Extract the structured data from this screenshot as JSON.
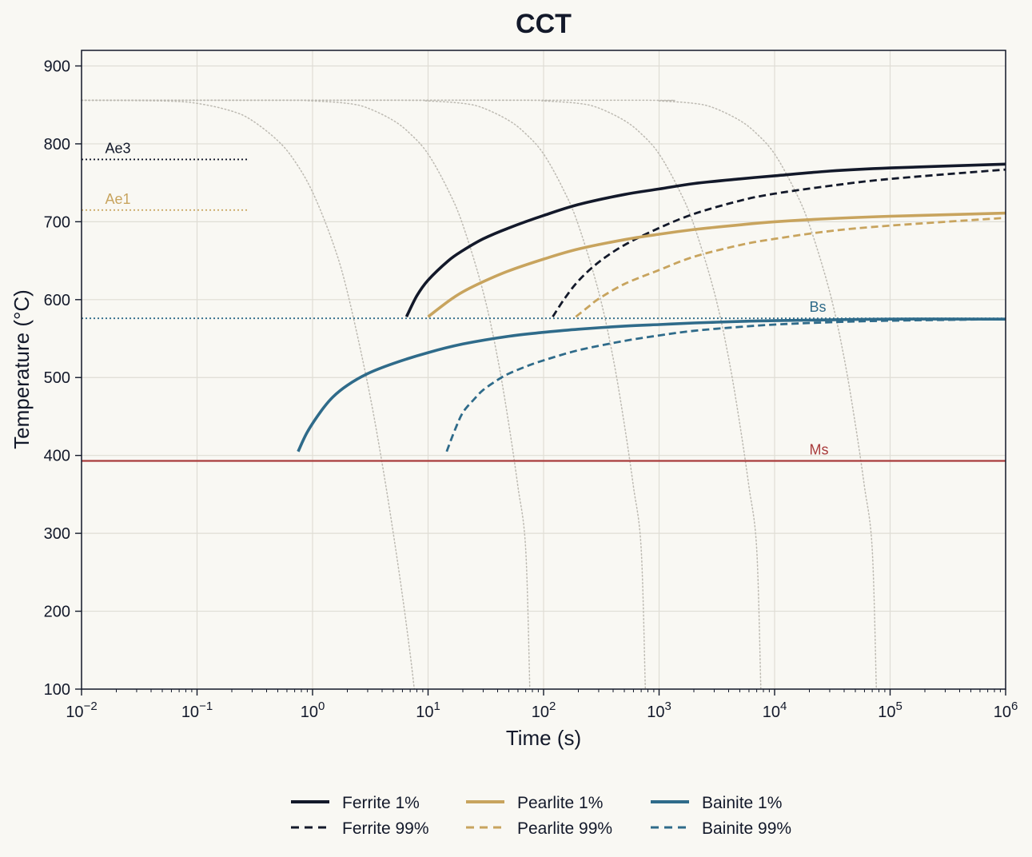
{
  "chart_data": {
    "type": "line",
    "title": "CCT",
    "xlabel": "Time (s)",
    "ylabel": "Temperature (°C)",
    "x_scale": "log",
    "xlim": [
      0.01,
      1000000
    ],
    "ylim": [
      100,
      920
    ],
    "grid": true,
    "x_ticks": [
      {
        "value": 0.01,
        "base": "10",
        "exp": "−2"
      },
      {
        "value": 0.1,
        "base": "10",
        "exp": "−1"
      },
      {
        "value": 1,
        "base": "10",
        "exp": "0"
      },
      {
        "value": 10,
        "base": "10",
        "exp": "1"
      },
      {
        "value": 100,
        "base": "10",
        "exp": "2"
      },
      {
        "value": 1000,
        "base": "10",
        "exp": "3"
      },
      {
        "value": 10000,
        "base": "10",
        "exp": "4"
      },
      {
        "value": 100000,
        "base": "10",
        "exp": "5"
      },
      {
        "value": 1000000,
        "base": "10",
        "exp": "6"
      }
    ],
    "y_ticks": [
      100,
      200,
      300,
      400,
      500,
      600,
      700,
      800,
      900
    ],
    "colors": {
      "ferrite": "#13192a",
      "pearlite": "#c8a45e",
      "bainite": "#2f6b8a",
      "ms": "#a93c3c",
      "cooling": "#bdbab2",
      "grid": "#dfddd5"
    },
    "reference_lines": [
      {
        "label": "Ae3",
        "y": 780,
        "x_end": 0.28,
        "style": "dotted",
        "color": "#13192a",
        "label_x": 0.016
      },
      {
        "label": "Ae1",
        "y": 715,
        "x_end": 0.28,
        "style": "dotted",
        "color": "#c8a45e",
        "label_x": 0.016
      },
      {
        "label": "Bs",
        "y": 576,
        "x_end": 1000000,
        "style": "dotted",
        "color": "#2f6b8a",
        "label_x": 20000
      },
      {
        "label": "Ms",
        "y": 393,
        "x_end": 1000000,
        "style": "solid",
        "color": "#a93c3c",
        "label_x": 20000
      }
    ],
    "cooling_curves": [
      {
        "x": [
          0.01,
          0.05,
          0.1,
          0.2,
          0.3,
          0.5,
          0.7,
          1,
          1.5,
          2,
          3,
          4,
          5,
          6,
          7,
          7.6
        ],
        "y": [
          856,
          855,
          852,
          842,
          830,
          804,
          778,
          738,
          673,
          610,
          492,
          390,
          300,
          220,
          145,
          100
        ]
      },
      {
        "x": [
          0.01,
          0.5,
          1,
          2,
          3,
          5,
          7,
          10,
          15,
          20,
          30,
          40,
          50,
          60,
          70,
          76
        ],
        "y": [
          856,
          856,
          855,
          852,
          846,
          830,
          813,
          787,
          740,
          696,
          610,
          525,
          440,
          360,
          280,
          100
        ]
      },
      {
        "x": [
          0.01,
          5,
          10,
          20,
          30,
          50,
          70,
          100,
          150,
          200,
          300,
          400,
          500,
          600,
          700,
          760
        ],
        "y": [
          856,
          856,
          855,
          852,
          846,
          830,
          813,
          787,
          740,
          696,
          610,
          525,
          440,
          360,
          280,
          100
        ]
      },
      {
        "x": [
          0.01,
          50,
          100,
          200,
          300,
          500,
          700,
          1000,
          1500,
          2000,
          3000,
          4000,
          5000,
          6000,
          7000,
          7600
        ],
        "y": [
          856,
          856,
          855,
          852,
          846,
          830,
          813,
          787,
          740,
          696,
          610,
          525,
          440,
          360,
          280,
          100
        ]
      },
      {
        "x": [
          0.01,
          500,
          1000,
          2000,
          3000,
          5000,
          7000,
          10000,
          15000,
          20000,
          30000,
          40000,
          50000,
          60000,
          70000,
          76000
        ],
        "y": [
          856,
          856,
          855,
          852,
          846,
          830,
          813,
          787,
          740,
          696,
          610,
          525,
          440,
          360,
          280,
          100
        ]
      }
    ],
    "series": [
      {
        "name": "Ferrite 1%",
        "phase": "ferrite",
        "dash": "solid",
        "x": [
          6.5,
          8,
          10,
          15,
          20,
          30,
          50,
          100,
          200,
          500,
          1000,
          2000,
          5000,
          10000,
          30000,
          100000,
          1000000
        ],
        "y": [
          578,
          605,
          625,
          650,
          663,
          678,
          692,
          708,
          722,
          735,
          742,
          749,
          755,
          759,
          765,
          769,
          774
        ]
      },
      {
        "name": "Ferrite 99%",
        "phase": "ferrite",
        "dash": "dashed",
        "x": [
          120,
          150,
          200,
          300,
          500,
          1000,
          2000,
          5000,
          10000,
          30000,
          100000,
          1000000
        ],
        "y": [
          578,
          600,
          624,
          648,
          670,
          692,
          710,
          727,
          736,
          746,
          755,
          767
        ]
      },
      {
        "name": "Pearlite 1%",
        "phase": "pearlite",
        "dash": "solid",
        "x": [
          10,
          15,
          20,
          30,
          50,
          100,
          200,
          500,
          1000,
          2000,
          5000,
          10000,
          30000,
          100000,
          1000000
        ],
        "y": [
          578,
          598,
          610,
          623,
          637,
          652,
          665,
          677,
          684,
          690,
          696,
          700,
          704,
          707,
          711
        ]
      },
      {
        "name": "Pearlite 99%",
        "phase": "pearlite",
        "dash": "dashed",
        "x": [
          190,
          250,
          300,
          500,
          1000,
          2000,
          5000,
          10000,
          30000,
          100000,
          1000000
        ],
        "y": [
          578,
          592,
          601,
          620,
          638,
          655,
          670,
          678,
          688,
          695,
          705
        ]
      },
      {
        "name": "Bainite 1%",
        "phase": "bainite",
        "dash": "solid",
        "x": [
          0.75,
          0.9,
          1.2,
          1.5,
          2,
          3,
          5,
          10,
          20,
          50,
          100,
          200,
          500,
          1000,
          2000,
          5000,
          10000,
          100000,
          1000000
        ],
        "y": [
          405,
          430,
          458,
          475,
          490,
          505,
          518,
          532,
          543,
          553,
          558,
          562,
          566,
          568,
          570,
          572,
          573,
          575,
          575
        ]
      },
      {
        "name": "Bainite 99%",
        "phase": "bainite",
        "dash": "dashed",
        "x": [
          14.5,
          17,
          20,
          25,
          30,
          40,
          50,
          70,
          100,
          200,
          500,
          1000,
          2000,
          5000,
          10000,
          30000,
          100000,
          1000000
        ],
        "y": [
          405,
          432,
          455,
          472,
          484,
          497,
          505,
          514,
          522,
          535,
          547,
          554,
          560,
          565,
          568,
          571,
          573,
          575
        ]
      }
    ],
    "legend": {
      "placement": "bottom",
      "columns": [
        [
          "Ferrite 1%",
          "Ferrite 99%"
        ],
        [
          "Pearlite 1%",
          "Pearlite 99%"
        ],
        [
          "Bainite 1%",
          "Bainite 99%"
        ]
      ]
    }
  }
}
